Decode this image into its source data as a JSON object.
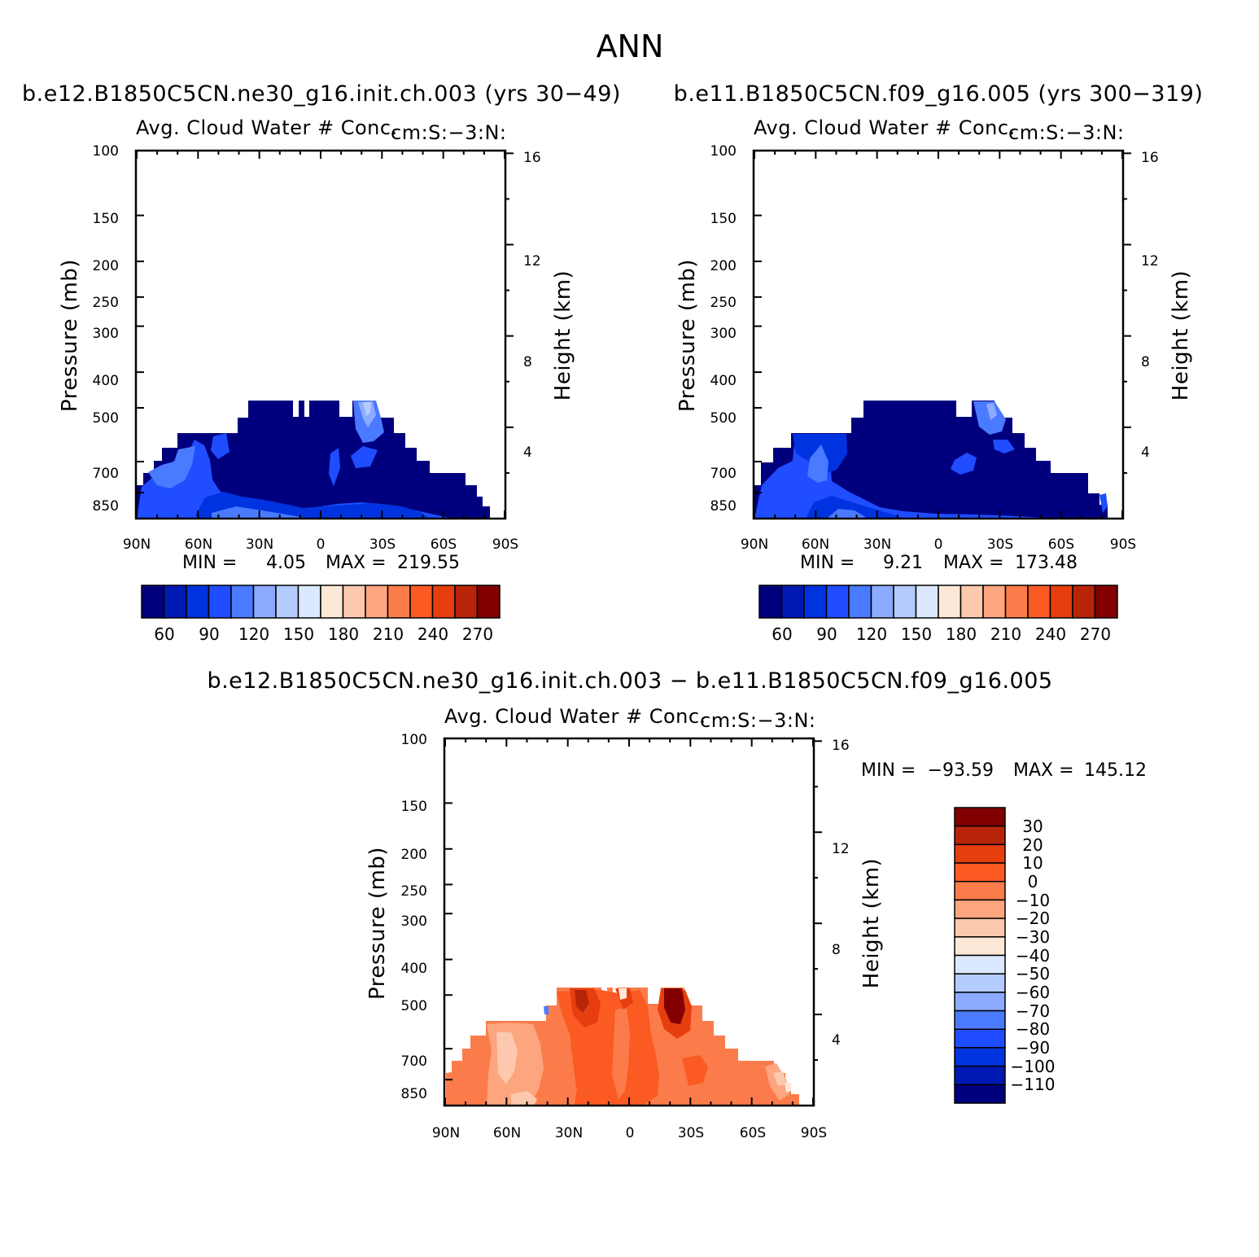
{
  "title": "ANN",
  "colors": {
    "abs_palette": [
      "#00007f",
      "#0019b3",
      "#0033e0",
      "#1f4dff",
      "#4a7aff",
      "#8caaff",
      "#b3cbff",
      "#dbe8ff",
      "#fde8d8",
      "#fdc9ae",
      "#fca57f",
      "#fb7c4a",
      "#fb5a23",
      "#e73e0f",
      "#b82408",
      "#820000"
    ],
    "diff_palette": [
      "#820000",
      "#b82408",
      "#e73e0f",
      "#fb5a23",
      "#fb7c4a",
      "#fca57f",
      "#fdc9ae",
      "#fde8d8",
      "#dbe8ff",
      "#b3cbff",
      "#8caaff",
      "#4a7aff",
      "#1f4dff",
      "#0033e0",
      "#0019b3",
      "#00007f"
    ]
  },
  "chart_data": [
    {
      "id": "panel1",
      "type": "heatmap",
      "case_title": "b.e12.B1850C5CN.ne30_g16.init.ch.003 (yrs 30−49)",
      "title": "Avg. Cloud Water # Conc.",
      "units": "cm:S:−3:N:",
      "xlabel": "",
      "ylabel": "Pressure (mb)",
      "y2label": "Height (km)",
      "x_ticks": [
        "90N",
        "60N",
        "30N",
        "0",
        "30S",
        "60S",
        "90S"
      ],
      "y_ticks": [
        100,
        150,
        200,
        250,
        300,
        400,
        500,
        700,
        850
      ],
      "y2_ticks": [
        16,
        12,
        8,
        4
      ],
      "ylim": [
        100,
        1000
      ],
      "yscale": "log",
      "min_label": "MIN =",
      "min_value": "4.05",
      "max_label": "MAX =",
      "max_value": "219.55",
      "colorbar_labels": [
        "60",
        "90",
        "120",
        "150",
        "180",
        "210",
        "240",
        "270"
      ]
    },
    {
      "id": "panel2",
      "type": "heatmap",
      "case_title": "b.e11.B1850C5CN.f09_g16.005 (yrs 300−319)",
      "title": "Avg. Cloud Water # Conc.",
      "units": "cm:S:−3:N:",
      "xlabel": "",
      "ylabel": "Pressure (mb)",
      "y2label": "Height (km)",
      "x_ticks": [
        "90N",
        "60N",
        "30N",
        "0",
        "30S",
        "60S",
        "90S"
      ],
      "y_ticks": [
        100,
        150,
        200,
        250,
        300,
        400,
        500,
        700,
        850
      ],
      "y2_ticks": [
        16,
        12,
        8,
        4
      ],
      "ylim": [
        100,
        1000
      ],
      "yscale": "log",
      "min_label": "MIN =",
      "min_value": "9.21",
      "max_label": "MAX =",
      "max_value": "173.48",
      "colorbar_labels": [
        "60",
        "90",
        "120",
        "150",
        "180",
        "210",
        "240",
        "270"
      ]
    },
    {
      "id": "panel3",
      "type": "heatmap",
      "case_title": "b.e12.B1850C5CN.ne30_g16.init.ch.003 − b.e11.B1850C5CN.f09_g16.005",
      "title": "Avg. Cloud Water # Conc.",
      "units": "cm:S:−3:N:",
      "xlabel": "",
      "ylabel": "Pressure (mb)",
      "y2label": "Height (km)",
      "x_ticks": [
        "90N",
        "60N",
        "30N",
        "0",
        "30S",
        "60S",
        "90S"
      ],
      "y_ticks": [
        100,
        150,
        200,
        250,
        300,
        400,
        500,
        700,
        850
      ],
      "y2_ticks": [
        16,
        12,
        8,
        4
      ],
      "ylim": [
        100,
        1000
      ],
      "yscale": "log",
      "min_label": "MIN =",
      "min_value": "−93.59",
      "max_label": "MAX =",
      "max_value": "145.12",
      "colorbar_labels": [
        "30",
        "20",
        "10",
        "0",
        "−10",
        "−20",
        "−30",
        "−40",
        "−50",
        "−60",
        "−70",
        "−80",
        "−90",
        "−100",
        "−110"
      ]
    }
  ]
}
